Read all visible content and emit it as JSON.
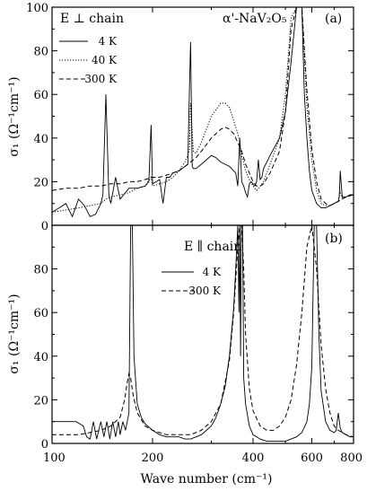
{
  "chart_data": [
    {
      "type": "line",
      "panel_tag": "(a)",
      "condition_label": "E ⊥ chain",
      "sample_label": "α'-NaV₂O₅",
      "ylabel": "σ₁ (Ω⁻¹cm⁻¹)",
      "xscale": "log",
      "xlim": [
        100,
        800
      ],
      "ylim": [
        0,
        100
      ],
      "yticks": [
        0,
        20,
        40,
        60,
        80,
        100
      ],
      "legend_position": "top-left",
      "series": [
        {
          "name": "4 K",
          "style": "solid",
          "x": [
            100,
            105,
            110,
            115,
            120,
            125,
            128,
            130,
            135,
            140,
            142,
            145,
            148,
            150,
            155,
            160,
            170,
            180,
            190,
            195,
            198,
            200,
            205,
            210,
            215,
            220,
            225,
            230,
            240,
            250,
            255,
            258,
            260,
            263,
            265,
            270,
            280,
            290,
            300,
            310,
            320,
            330,
            340,
            345,
            350,
            355,
            360,
            365,
            370,
            375,
            380,
            385,
            390,
            395,
            400,
            405,
            410,
            415,
            420,
            425,
            430,
            450,
            480,
            500,
            520,
            540,
            560,
            570,
            580,
            590,
            600,
            620,
            640,
            660,
            680,
            700,
            720,
            725,
            730,
            740,
            760,
            780,
            800
          ],
          "y": [
            6,
            8,
            10,
            4,
            12,
            9,
            6,
            4,
            5,
            10,
            14,
            60,
            14,
            10,
            22,
            12,
            17,
            17,
            18,
            20,
            46,
            19,
            20,
            21,
            10,
            22,
            22,
            24,
            25,
            27,
            28,
            62,
            84,
            27,
            26,
            26,
            28,
            30,
            32,
            31,
            29,
            28,
            27,
            26,
            25,
            24,
            18,
            40,
            20,
            18,
            15,
            13,
            19,
            20,
            19,
            18,
            20,
            30,
            21,
            22,
            26,
            32,
            40,
            52,
            75,
            100,
            100,
            60,
            40,
            25,
            16,
            10,
            8,
            8,
            9,
            10,
            11,
            13,
            25,
            13,
            13,
            14,
            14
          ]
        },
        {
          "name": "40 K",
          "style": "dotted",
          "x": [
            100,
            110,
            120,
            130,
            140,
            145,
            150,
            160,
            170,
            180,
            190,
            198,
            200,
            210,
            220,
            230,
            240,
            250,
            258,
            260,
            265,
            270,
            280,
            290,
            300,
            310,
            320,
            330,
            340,
            350,
            360,
            365,
            370,
            380,
            390,
            400,
            410,
            420,
            430,
            450,
            480,
            500,
            520,
            540,
            560,
            580,
            600,
            620,
            640,
            660,
            680,
            700,
            720,
            728,
            740,
            760,
            800
          ],
          "y": [
            6,
            7,
            8,
            9,
            10,
            12,
            13,
            14,
            15,
            17,
            18,
            22,
            18,
            19,
            20,
            22,
            25,
            29,
            34,
            56,
            34,
            33,
            38,
            44,
            50,
            53,
            56,
            56,
            54,
            48,
            42,
            38,
            32,
            25,
            21,
            18,
            16,
            18,
            20,
            28,
            40,
            60,
            95,
            100,
            100,
            55,
            30,
            16,
            10,
            9,
            9,
            10,
            11,
            16,
            12,
            13,
            14
          ]
        },
        {
          "name": "300 K",
          "style": "dashed",
          "x": [
            100,
            110,
            120,
            130,
            140,
            150,
            160,
            170,
            180,
            190,
            200,
            210,
            220,
            230,
            240,
            250,
            260,
            270,
            280,
            290,
            300,
            310,
            320,
            330,
            340,
            350,
            360,
            370,
            380,
            390,
            400,
            410,
            420,
            430,
            450,
            480,
            500,
            520,
            540,
            560,
            580,
            600,
            620,
            640,
            660,
            680,
            700,
            720,
            740,
            760,
            800
          ],
          "y": [
            16,
            17,
            17,
            18,
            18,
            19,
            19,
            20,
            20,
            21,
            22,
            22,
            23,
            24,
            25,
            27,
            29,
            31,
            34,
            37,
            40,
            42,
            44,
            45,
            44,
            42,
            38,
            34,
            28,
            24,
            20,
            18,
            18,
            19,
            24,
            34,
            52,
            90,
            100,
            100,
            62,
            35,
            20,
            12,
            10,
            9,
            10,
            11,
            12,
            13,
            14
          ]
        }
      ]
    },
    {
      "type": "line",
      "panel_tag": "(b)",
      "condition_label": "E ∥ chain",
      "ylabel": "σ₁ (Ω⁻¹cm⁻¹)",
      "xlabel": "Wave number (cm⁻¹)",
      "xscale": "log",
      "xlim": [
        100,
        800
      ],
      "ylim": [
        0,
        100
      ],
      "yticks": [
        0,
        20,
        40,
        60,
        80
      ],
      "xticks": [
        100,
        200,
        400,
        600,
        800
      ],
      "legend_position": "top-right",
      "series": [
        {
          "name": "4 K",
          "style": "solid",
          "x": [
            100,
            103,
            106,
            109,
            112,
            115,
            118,
            121,
            124,
            127,
            130,
            133,
            136,
            140,
            143,
            146,
            149,
            152,
            155,
            158,
            160,
            163,
            166,
            168,
            170,
            172,
            174,
            176,
            180,
            185,
            190,
            200,
            210,
            220,
            230,
            240,
            250,
            260,
            270,
            280,
            290,
            300,
            310,
            320,
            330,
            340,
            350,
            355,
            360,
            363,
            365,
            367,
            369,
            372,
            375,
            380,
            390,
            400,
            420,
            440,
            460,
            480,
            500,
            520,
            540,
            560,
            580,
            590,
            600,
            610,
            620,
            630,
            640,
            660,
            680,
            700,
            710,
            720,
            730,
            740,
            760,
            780,
            800
          ],
          "y": [
            10,
            10,
            10,
            10,
            10,
            10,
            10,
            9,
            8,
            3,
            2,
            10,
            2,
            10,
            3,
            10,
            2,
            10,
            3,
            10,
            4,
            10,
            6,
            10,
            14,
            100,
            100,
            40,
            18,
            12,
            9,
            6,
            4,
            3,
            3,
            3,
            2,
            2,
            3,
            4,
            6,
            8,
            12,
            18,
            26,
            40,
            62,
            80,
            100,
            60,
            100,
            40,
            100,
            100,
            30,
            18,
            8,
            4,
            2,
            1,
            1,
            1,
            1,
            2,
            3,
            5,
            10,
            18,
            35,
            100,
            100,
            50,
            24,
            10,
            6,
            5,
            6,
            14,
            7,
            5,
            4,
            3,
            3
          ]
        },
        {
          "name": "300 K",
          "style": "dashed",
          "x": [
            100,
            110,
            120,
            130,
            140,
            150,
            160,
            165,
            168,
            170,
            172,
            175,
            180,
            190,
            200,
            220,
            240,
            260,
            280,
            300,
            320,
            340,
            350,
            360,
            365,
            370,
            375,
            380,
            390,
            400,
            420,
            440,
            460,
            480,
            500,
            520,
            540,
            560,
            580,
            600,
            620,
            640,
            660,
            680,
            700,
            720,
            740,
            760,
            800
          ],
          "y": [
            4,
            4,
            4,
            5,
            6,
            8,
            12,
            20,
            28,
            32,
            30,
            22,
            14,
            8,
            6,
            4,
            4,
            4,
            6,
            10,
            18,
            38,
            60,
            90,
            100,
            100,
            80,
            50,
            25,
            15,
            8,
            6,
            6,
            8,
            12,
            20,
            36,
            60,
            90,
            100,
            80,
            45,
            25,
            14,
            8,
            6,
            5,
            4,
            3
          ]
        }
      ]
    }
  ],
  "axes_text": {
    "panel_a_y_ticks": [
      "0",
      "20",
      "40",
      "60",
      "80",
      "100"
    ],
    "panel_b_y_ticks": [
      "0",
      "20",
      "40",
      "60",
      "80"
    ],
    "x_ticks": [
      "100",
      "200",
      "400",
      "600",
      "800"
    ]
  }
}
